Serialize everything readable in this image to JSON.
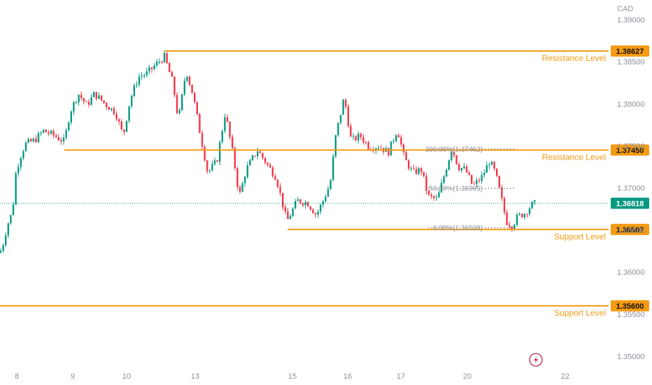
{
  "chart_data": {
    "type": "candlestick",
    "currency": "CAD",
    "x_tick_labels": [
      "8",
      "9",
      "10",
      "13",
      "15",
      "16",
      "17",
      "20",
      "22"
    ],
    "y_tick_labels": [
      "1.39000",
      "1.38500",
      "1.38000",
      "1.37500",
      "1.37000",
      "1.36500",
      "1.36000",
      "1.35500",
      "1.35000"
    ],
    "ylim": [
      1.3495,
      1.3905
    ],
    "levels": [
      {
        "price": 1.38627,
        "price_label": "1.38627",
        "label": "Resistance Level"
      },
      {
        "price": 1.3745,
        "price_label": "1.37450",
        "label": "Resistance Level"
      },
      {
        "price": 1.36507,
        "price_label": "1.36507",
        "label": "Support Level"
      },
      {
        "price": 1.356,
        "price_label": "1.35600",
        "label": "Support Level"
      }
    ],
    "fibonacci": [
      {
        "price": 1.37462,
        "label": "100.00%(1.37462)"
      },
      {
        "price": 1.36995,
        "label": "50.00%(1.36995)"
      },
      {
        "price": 1.36528,
        "label": "0.00%(1.36528)"
      }
    ],
    "current_price": 1.36818,
    "current_price_label": "1.36818",
    "close_path": [
      [
        0,
        1.3623
      ],
      [
        6,
        1.3638
      ],
      [
        10,
        1.3655
      ],
      [
        18,
        1.3672
      ],
      [
        22,
        1.3715
      ],
      [
        28,
        1.3735
      ],
      [
        36,
        1.3752
      ],
      [
        50,
        1.3757
      ],
      [
        62,
        1.3768
      ],
      [
        78,
        1.3762
      ],
      [
        92,
        1.3755
      ],
      [
        100,
        1.379
      ],
      [
        112,
        1.3812
      ],
      [
        124,
        1.3798
      ],
      [
        135,
        1.3812
      ],
      [
        150,
        1.38
      ],
      [
        165,
        1.379
      ],
      [
        176,
        1.3762
      ],
      [
        186,
        1.3805
      ],
      [
        198,
        1.3832
      ],
      [
        210,
        1.3836
      ],
      [
        222,
        1.3846
      ],
      [
        235,
        1.3856
      ],
      [
        247,
        1.3825
      ],
      [
        255,
        1.378
      ],
      [
        266,
        1.384
      ],
      [
        276,
        1.381
      ],
      [
        286,
        1.3765
      ],
      [
        297,
        1.3718
      ],
      [
        310,
        1.3732
      ],
      [
        322,
        1.379
      ],
      [
        334,
        1.3735
      ],
      [
        342,
        1.369
      ],
      [
        352,
        1.3722
      ],
      [
        368,
        1.3745
      ],
      [
        382,
        1.3728
      ],
      [
        395,
        1.3712
      ],
      [
        410,
        1.366
      ],
      [
        425,
        1.3685
      ],
      [
        440,
        1.3682
      ],
      [
        452,
        1.3668
      ],
      [
        462,
        1.3685
      ],
      [
        472,
        1.3705
      ],
      [
        480,
        1.3762
      ],
      [
        492,
        1.3808
      ],
      [
        502,
        1.3756
      ],
      [
        515,
        1.3762
      ],
      [
        528,
        1.3748
      ],
      [
        542,
        1.375
      ],
      [
        555,
        1.3742
      ],
      [
        568,
        1.377
      ],
      [
        578,
        1.3735
      ],
      [
        590,
        1.3718
      ],
      [
        602,
        1.3722
      ],
      [
        612,
        1.369
      ],
      [
        625,
        1.3686
      ],
      [
        636,
        1.3718
      ],
      [
        646,
        1.3748
      ],
      [
        655,
        1.3725
      ],
      [
        665,
        1.3722
      ],
      [
        676,
        1.3702
      ],
      [
        688,
        1.3712
      ],
      [
        700,
        1.3732
      ],
      [
        708,
        1.3718
      ],
      [
        716,
        1.369
      ],
      [
        724,
        1.366
      ],
      [
        732,
        1.3655
      ],
      [
        740,
        1.3666
      ],
      [
        750,
        1.367
      ],
      [
        760,
        1.368
      ],
      [
        766,
        1.36818
      ]
    ]
  }
}
